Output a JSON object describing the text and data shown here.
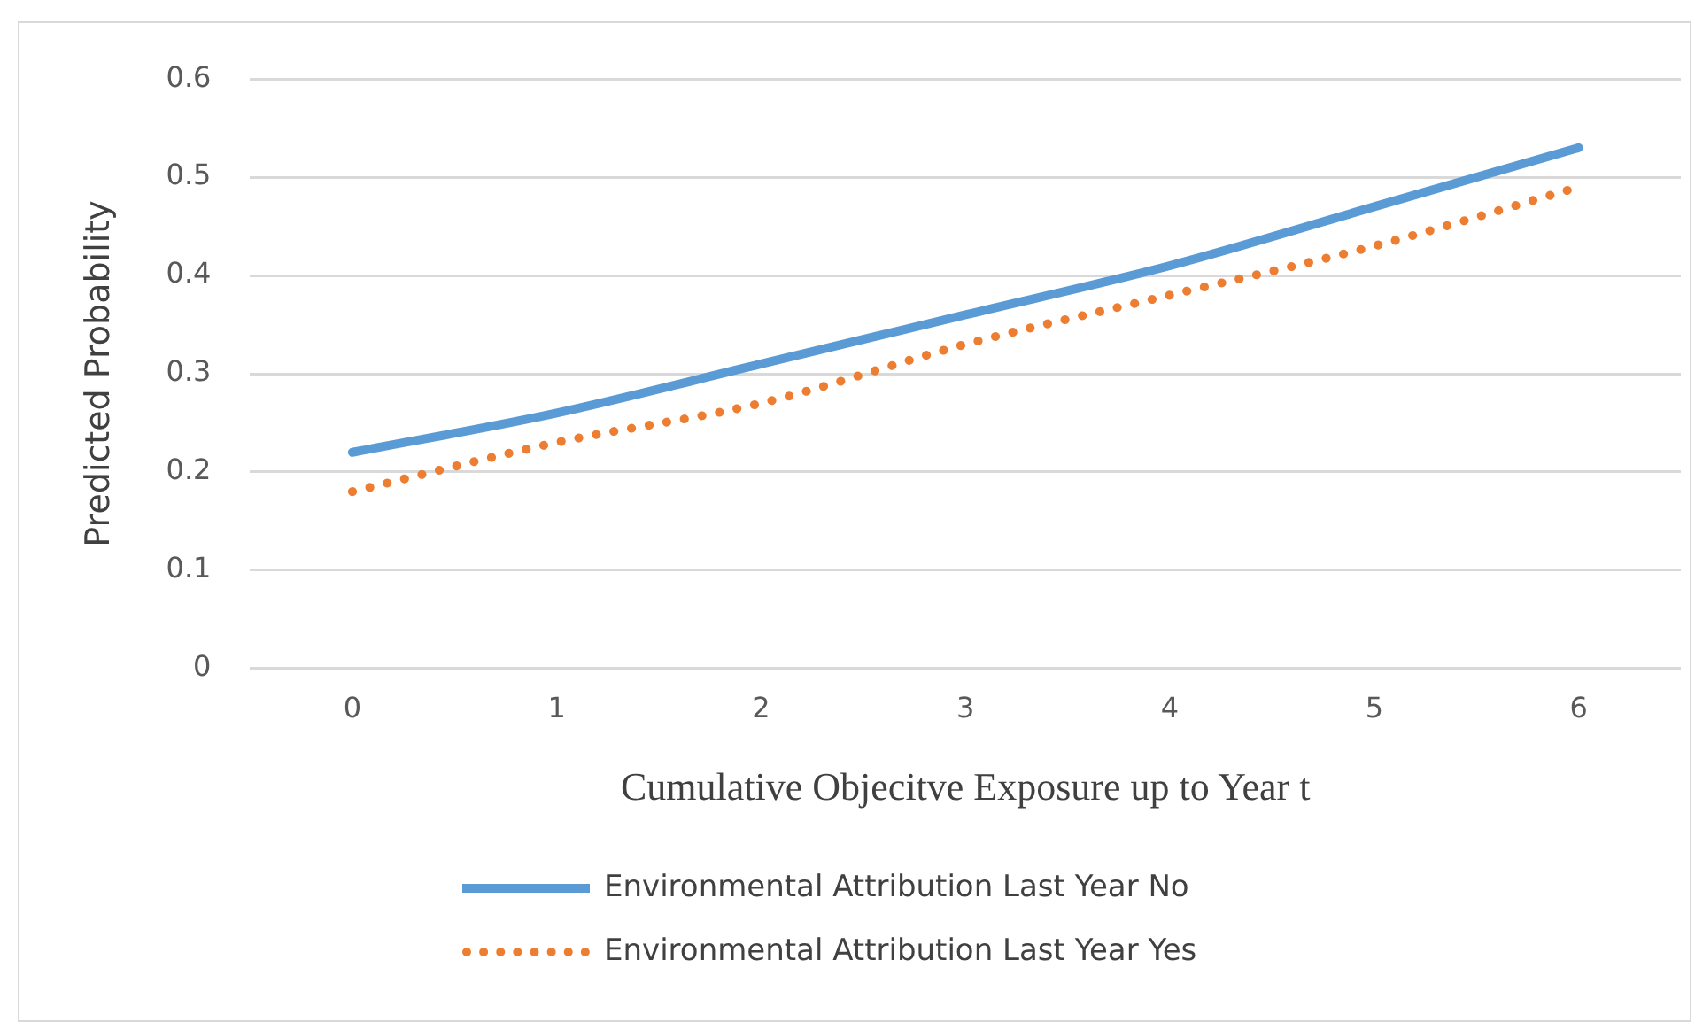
{
  "chart_data": {
    "type": "line",
    "xlabel": "Cumulative Objecitve Exposure up to Year t",
    "ylabel": "Predicted Probability",
    "categories": [
      "0",
      "1",
      "2",
      "3",
      "4",
      "5",
      "6"
    ],
    "series": [
      {
        "name": "Environmental Attribution Last Year No",
        "color": "#5b9bd5",
        "line_style": "solid",
        "values": [
          0.22,
          0.26,
          0.31,
          0.36,
          0.41,
          0.47,
          0.53
        ]
      },
      {
        "name": "Environmental Attribution Last Year Yes",
        "color": "#ed7d31",
        "line_style": "dotted",
        "values": [
          0.18,
          0.23,
          0.27,
          0.33,
          0.38,
          0.43,
          0.49
        ]
      }
    ],
    "ylim": [
      0,
      0.6
    ],
    "yticks": [
      0,
      0.1,
      0.2,
      0.3,
      0.4,
      0.5,
      0.6
    ],
    "grid": "y",
    "legend": "bottom",
    "marker": "none"
  }
}
